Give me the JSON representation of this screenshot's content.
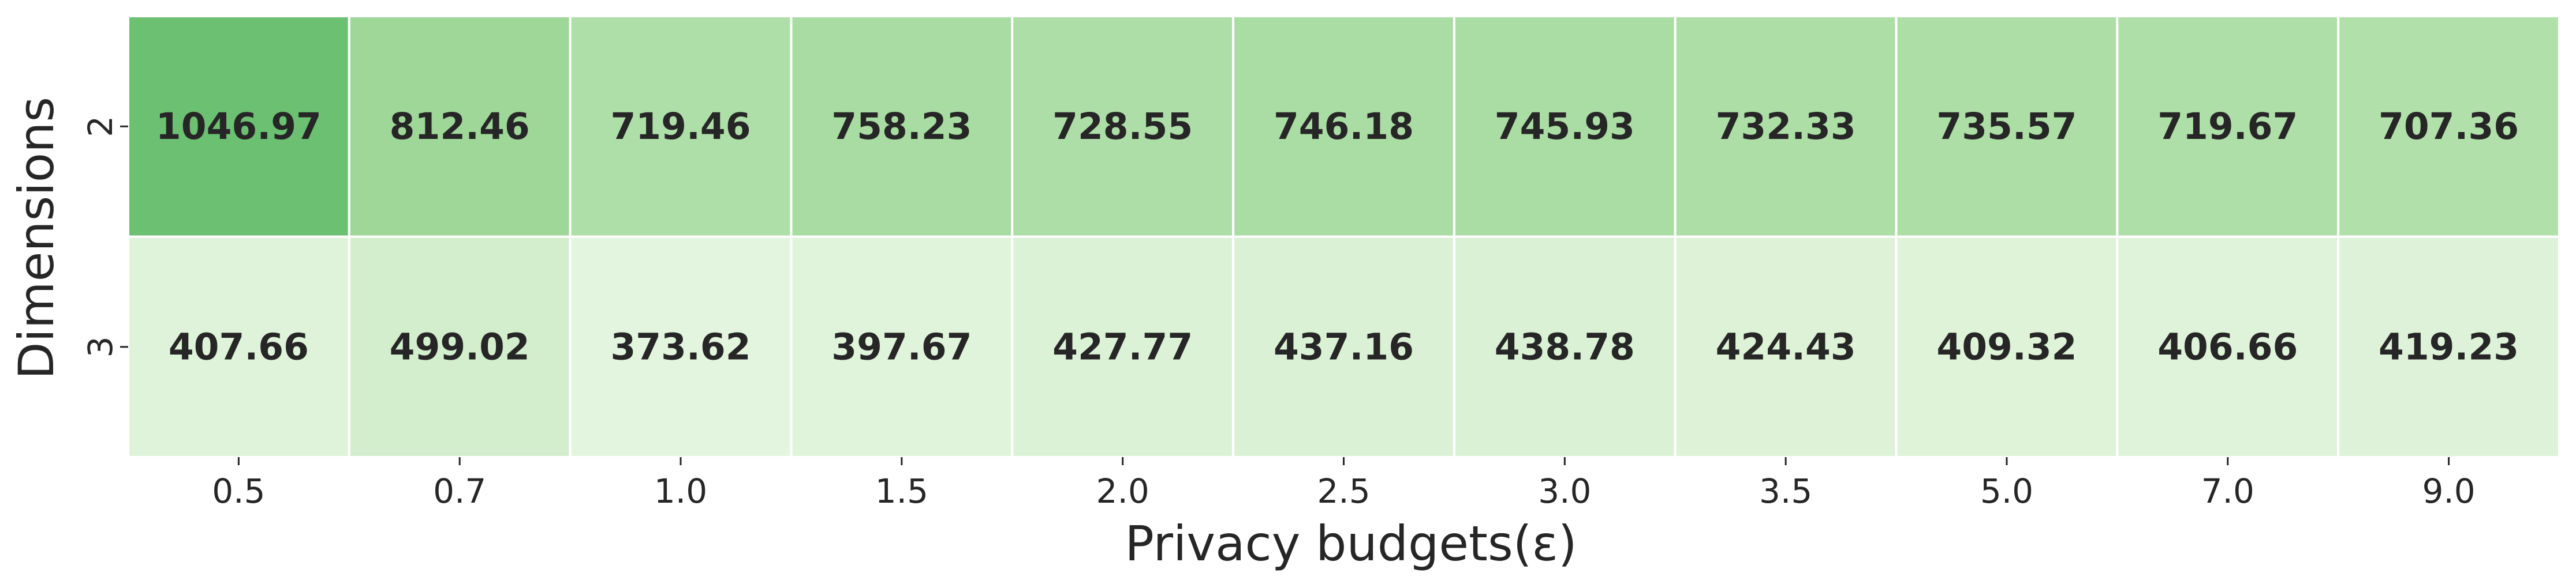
{
  "chart_data": {
    "type": "heatmap",
    "title": "",
    "xlabel": "Privacy budgets(ε)",
    "ylabel": "Dimensions",
    "x_categories": [
      "0.5",
      "0.7",
      "1.0",
      "1.5",
      "2.0",
      "2.5",
      "3.0",
      "3.5",
      "5.0",
      "7.0",
      "9.0"
    ],
    "y_categories": [
      "2",
      "3"
    ],
    "values": [
      [
        "1046.97",
        "812.46",
        "719.46",
        "758.23",
        "728.55",
        "746.18",
        "745.93",
        "732.33",
        "735.57",
        "719.67",
        "707.36"
      ],
      [
        "407.66",
        "499.02",
        "373.62",
        "397.67",
        "427.77",
        "437.16",
        "438.78",
        "424.43",
        "409.32",
        "406.66",
        "419.23"
      ]
    ],
    "colormap": "Greens",
    "color_low": "#f0f9ec",
    "color_high": "#4aae5e",
    "cell_border_color": "#ffffff",
    "colorbar": false,
    "annotations": true
  }
}
